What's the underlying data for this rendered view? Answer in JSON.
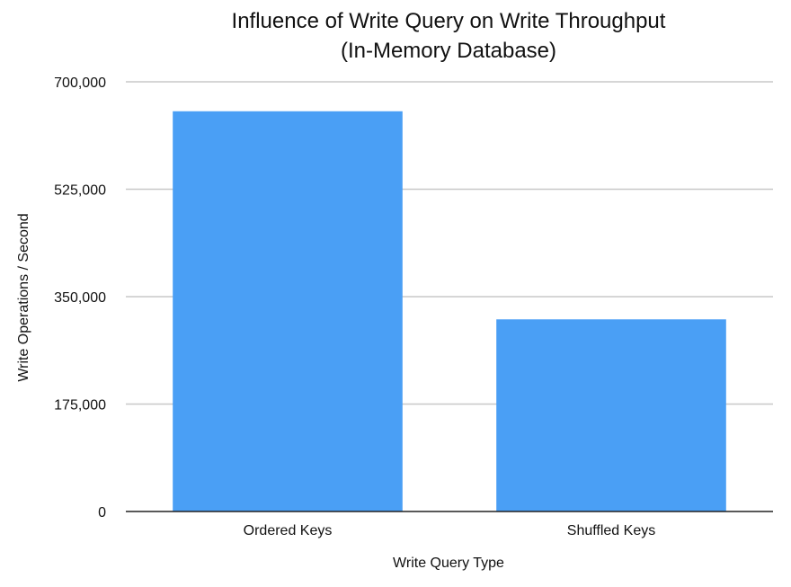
{
  "chart_data": {
    "type": "bar",
    "title": [
      "Influence of Write Query on Write Throughput",
      "(In-Memory Database)"
    ],
    "xlabel": "Write Query Type",
    "ylabel": "Write Operations / Second",
    "categories": [
      "Ordered Keys",
      "Shuffled Keys"
    ],
    "series": [
      {
        "values": [
          652000,
          313000
        ],
        "color": "#4a9ff5"
      }
    ],
    "ylim": [
      0,
      700000
    ],
    "yticks": [
      0,
      175000,
      350000,
      525000,
      700000
    ],
    "ytick_labels": [
      "0",
      "175,000",
      "350,000",
      "525,000",
      "700,000"
    ],
    "grid": true,
    "legend": "none"
  }
}
